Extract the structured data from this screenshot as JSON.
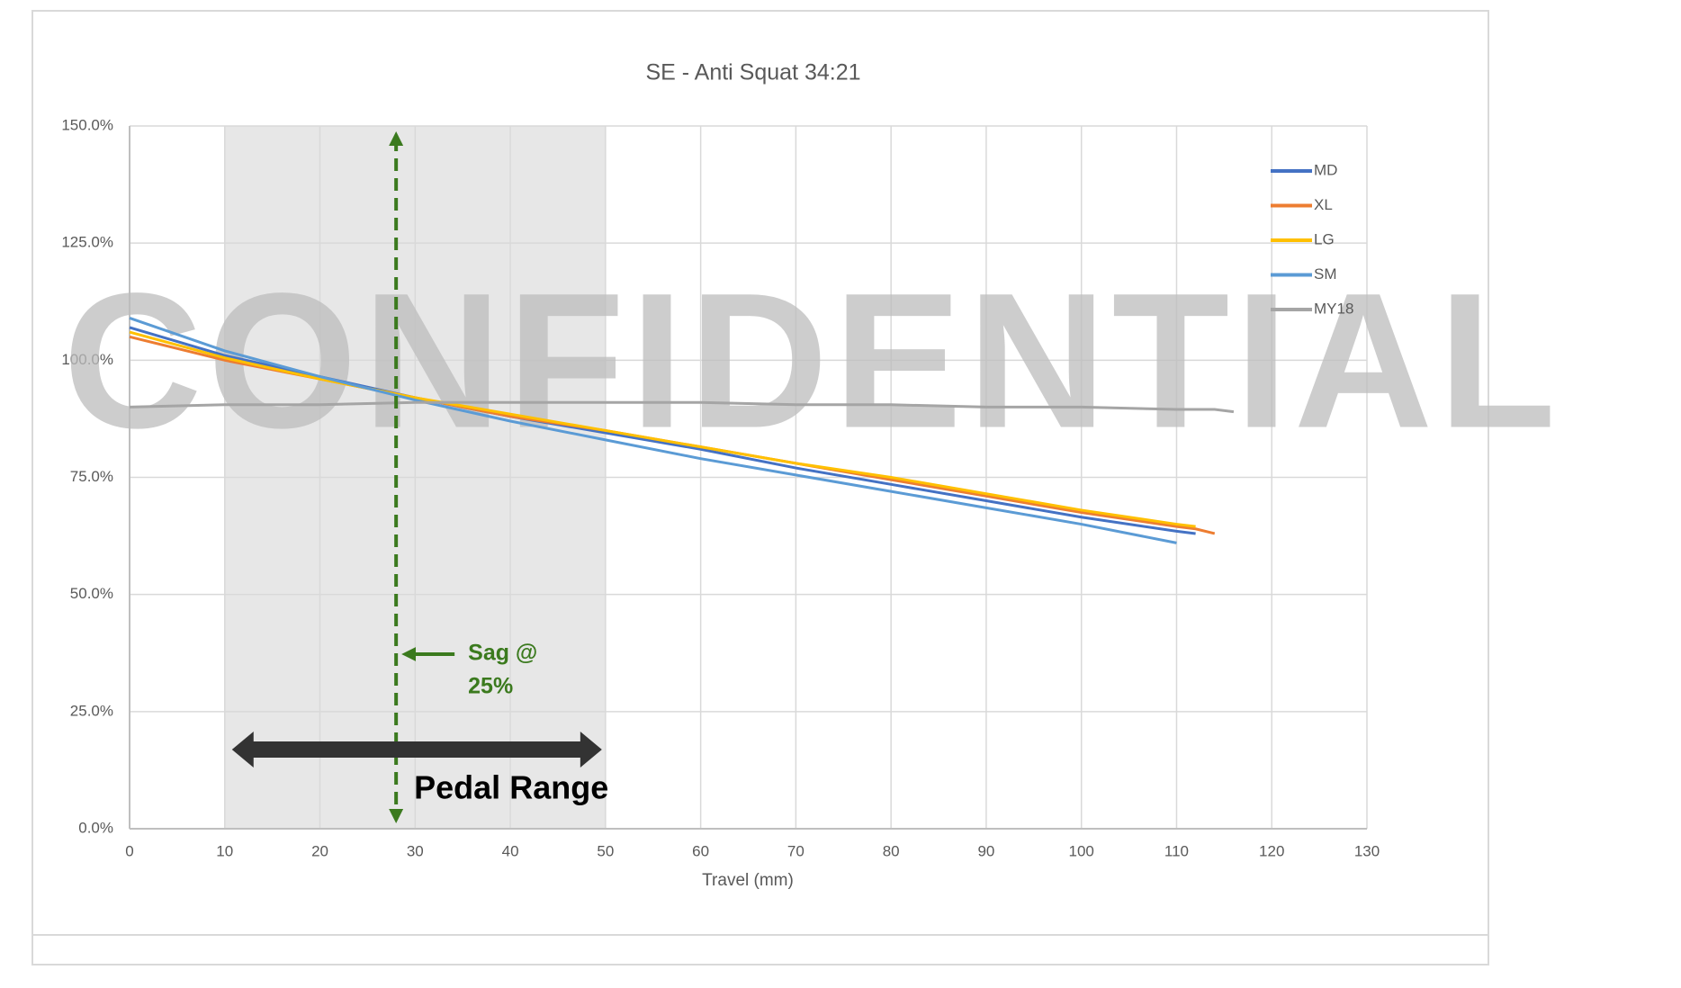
{
  "chart_data": {
    "type": "line",
    "title": "SE - Anti Squat 34:21",
    "x_label": "Travel (mm)",
    "x": [
      0,
      10,
      20,
      30,
      40,
      50,
      60,
      70,
      80,
      90,
      100,
      110,
      112,
      114,
      116
    ],
    "series": [
      {
        "name": "MD",
        "color": "#4472c4",
        "values": [
          107,
          101,
          96.5,
          92,
          88,
          84.5,
          81,
          77,
          73.5,
          70,
          66.5,
          63.5,
          63,
          null,
          null
        ]
      },
      {
        "name": "XL",
        "color": "#ed7d31",
        "values": [
          105,
          100,
          96,
          92,
          88,
          85,
          81.5,
          78,
          74.5,
          71,
          67.5,
          64.5,
          64,
          63,
          null
        ]
      },
      {
        "name": "LG",
        "color": "#ffc000",
        "values": [
          106,
          100.5,
          96,
          92,
          88.5,
          85,
          81.5,
          78,
          75,
          71.5,
          68,
          65,
          64.5,
          null,
          null
        ]
      },
      {
        "name": "SM",
        "color": "#5b9bd5",
        "values": [
          109,
          102,
          96.5,
          91.5,
          87,
          83,
          79,
          75.5,
          72,
          68.5,
          65,
          61,
          null,
          null,
          null
        ]
      },
      {
        "name": "MY18",
        "color": "#a5a5a5",
        "values": [
          90,
          90.5,
          90.5,
          91,
          91,
          91,
          91,
          90.5,
          90.5,
          90,
          90,
          89.5,
          89.5,
          89.5,
          89
        ]
      }
    ],
    "xlim": [
      0,
      130
    ],
    "xticks": [
      0,
      10,
      20,
      30,
      40,
      50,
      60,
      70,
      80,
      90,
      100,
      110,
      120,
      130
    ],
    "ylim": [
      0,
      150
    ],
    "yticks": [
      {
        "value": 0,
        "label": "0.0%"
      },
      {
        "value": 25,
        "label": "25.0%"
      },
      {
        "value": 50,
        "label": "50.0%"
      },
      {
        "value": 75,
        "label": "75.0%"
      },
      {
        "value": 100,
        "label": "100.0%"
      },
      {
        "value": 125,
        "label": "125.0%"
      },
      {
        "value": 150,
        "label": "150.0%"
      }
    ],
    "grid": true,
    "legend": "right",
    "pedal_range": [
      10,
      50
    ],
    "pedal_label": "Pedal Range",
    "sag_travel": 28,
    "sag_label": [
      "Sag @",
      "25%"
    ],
    "watermark": "CONFIDENTIAL"
  }
}
